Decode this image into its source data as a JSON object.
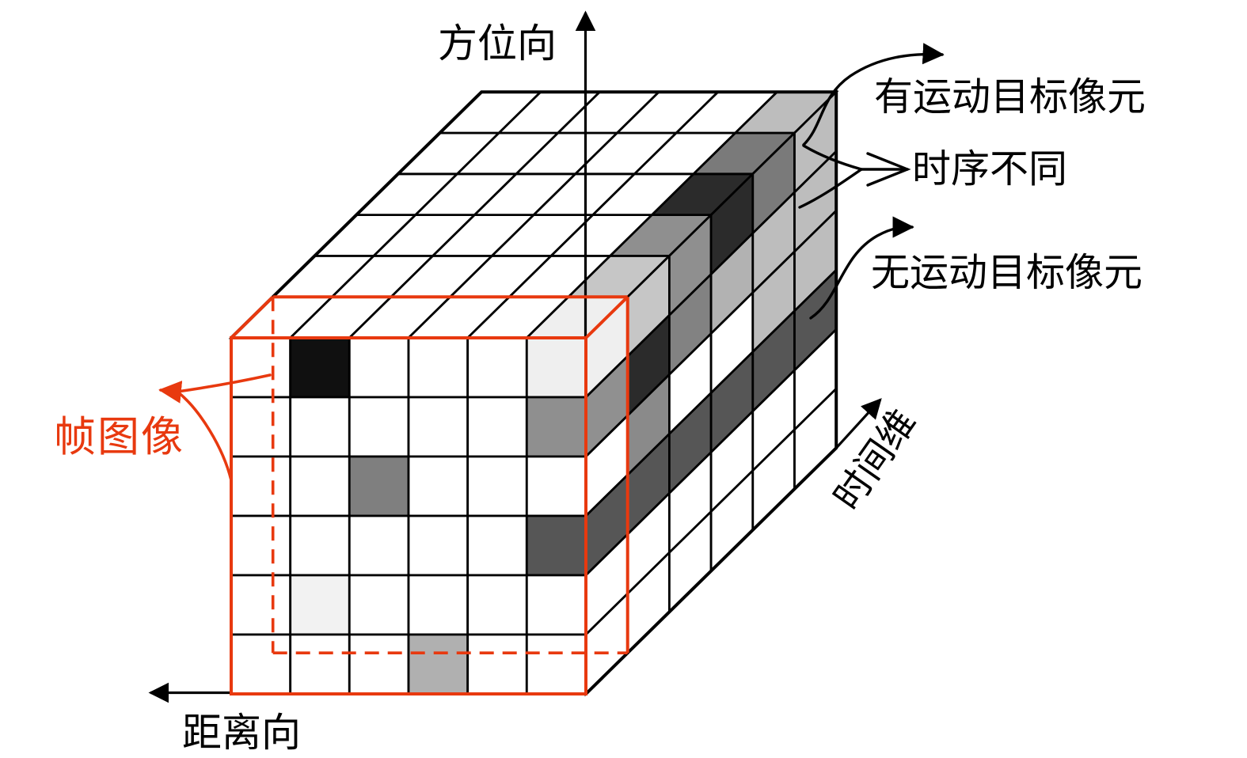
{
  "labels": {
    "azimuth_axis": "方位向",
    "range_axis": "距离向",
    "time_axis": "时间维",
    "moving_target_pixel": "有运动目标像元",
    "different_time_series": "时序不同",
    "no_moving_target_pixel": "无运动目标像元",
    "frame_image": "帧图像"
  },
  "colors": {
    "accent_red": "#e8390f",
    "line_black": "#000000",
    "background": "#ffffff",
    "no_moving_band_gray": "#565656",
    "moving_dark": "#2b2b2b"
  },
  "cube": {
    "cols": 6,
    "rows": 6,
    "depth": 6,
    "front_cells": [
      {
        "col": 1,
        "row": 0,
        "color": "#101010"
      },
      {
        "col": 5,
        "row": 0,
        "color": "#efefef"
      },
      {
        "col": 5,
        "row": 1,
        "color": "#8f8f8f"
      },
      {
        "col": 2,
        "row": 2,
        "color": "#7f7f7f"
      },
      {
        "col": 5,
        "row": 3,
        "color": "#565656"
      },
      {
        "col": 1,
        "row": 4,
        "color": "#f2f2f2"
      },
      {
        "col": 3,
        "row": 5,
        "color": "#b0b0b0"
      }
    ],
    "top_cells": [
      {
        "col": 5,
        "depth": 0,
        "color": "#efefef"
      },
      {
        "col": 5,
        "depth": 1,
        "color": "#c6c6c6"
      },
      {
        "col": 5,
        "depth": 2,
        "color": "#8f8f8f"
      },
      {
        "col": 5,
        "depth": 3,
        "color": "#2b2b2b"
      },
      {
        "col": 5,
        "depth": 4,
        "color": "#7a7a7a"
      },
      {
        "col": 5,
        "depth": 5,
        "color": "#bdbdbd"
      }
    ],
    "side_cells": [
      {
        "depth": 0,
        "row": 0,
        "color": "#efefef"
      },
      {
        "depth": 0,
        "row": 1,
        "color": "#909090"
      },
      {
        "depth": 0,
        "row": 3,
        "color": "#565656"
      },
      {
        "depth": 1,
        "row": 0,
        "color": "#c6c6c6"
      },
      {
        "depth": 1,
        "row": 1,
        "color": "#2b2b2b"
      },
      {
        "depth": 1,
        "row": 2,
        "color": "#8a8a8a"
      },
      {
        "depth": 1,
        "row": 3,
        "color": "#565656"
      },
      {
        "depth": 2,
        "row": 0,
        "color": "#8f8f8f"
      },
      {
        "depth": 2,
        "row": 1,
        "color": "#828282"
      },
      {
        "depth": 2,
        "row": 3,
        "color": "#565656"
      },
      {
        "depth": 3,
        "row": 0,
        "color": "#2b2b2b"
      },
      {
        "depth": 3,
        "row": 1,
        "color": "#b2b2b2"
      },
      {
        "depth": 3,
        "row": 3,
        "color": "#565656"
      },
      {
        "depth": 4,
        "row": 0,
        "color": "#7a7a7a"
      },
      {
        "depth": 4,
        "row": 1,
        "color": "#bdbdbd"
      },
      {
        "depth": 4,
        "row": 2,
        "color": "#bdbdbd"
      },
      {
        "depth": 4,
        "row": 3,
        "color": "#565656"
      },
      {
        "depth": 5,
        "row": 0,
        "color": "#bdbdbd"
      },
      {
        "depth": 5,
        "row": 1,
        "color": "#bdbdbd"
      },
      {
        "depth": 5,
        "row": 2,
        "color": "#bdbdbd"
      },
      {
        "depth": 5,
        "row": 3,
        "color": "#565656"
      }
    ]
  }
}
